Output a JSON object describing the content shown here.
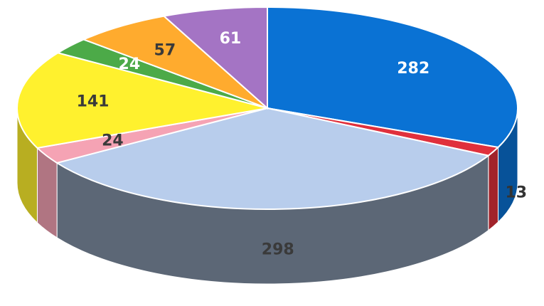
{
  "chart_data": {
    "type": "pie",
    "values": [
      282,
      13,
      298,
      24,
      141,
      24,
      57,
      61
    ],
    "colors": [
      "#0a72d4",
      "#e0303c",
      "#b8cdec",
      "#f5a3b4",
      "#fff12e",
      "#4caa48",
      "#ffab2e",
      "#a474c4"
    ]
  }
}
